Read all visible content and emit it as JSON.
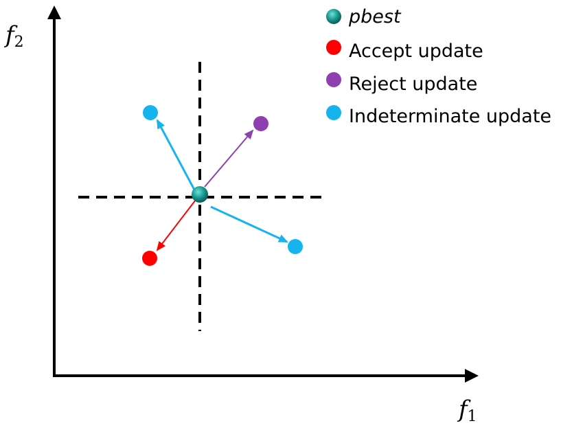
{
  "axes": {
    "x_label": "f",
    "x_subscript": "1",
    "y_label": "f",
    "y_subscript": "2"
  },
  "legend": [
    {
      "key": "pbest",
      "label": "pbest",
      "italic": true,
      "color": "#1a9a93"
    },
    {
      "key": "accept",
      "label": "Accept update",
      "italic": false,
      "color": "#ff0000"
    },
    {
      "key": "reject",
      "label": "Reject update",
      "italic": false,
      "color": "#8e3fb0"
    },
    {
      "key": "indeterminate",
      "label": "Indeterminate update",
      "italic": false,
      "color": "#16b4ee"
    }
  ],
  "colors": {
    "axis": "#000000",
    "dashed": "#000000",
    "pbest": "#1a9a93",
    "accept": "#ff0000",
    "reject": "#8e3fb0",
    "indeterminate": "#16b4ee"
  }
}
